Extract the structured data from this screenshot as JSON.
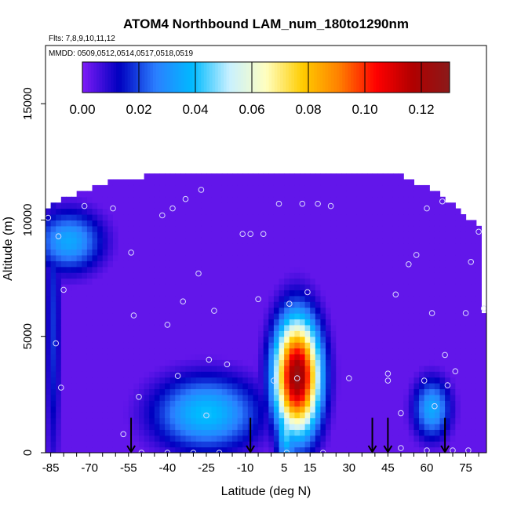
{
  "chart_data": {
    "type": "heatmap",
    "title": "ATOM4 Northbound LAM_num_180to1290nm",
    "subtitle_flights": "Flts: 7,8,9,10,11,12",
    "subtitle_dates": "MMDD: 0509,0512,0514,0517,0518,0519",
    "xlabel": "Latitude (deg N)",
    "ylabel": "Altitude (m)",
    "xlim": [
      -87,
      83
    ],
    "ylim": [
      0,
      17500
    ],
    "x_ticks": [
      -85,
      -70,
      -55,
      -40,
      -25,
      -10,
      5,
      15,
      30,
      45,
      60,
      75
    ],
    "x_tick_labels": [
      "-85",
      "-70",
      "-55",
      "-40",
      "-25",
      "-10",
      "5",
      "15",
      "30",
      "45",
      "60",
      "75"
    ],
    "y_ticks": [
      0,
      5000,
      10000,
      15000
    ],
    "y_tick_labels": [
      "0",
      "5000",
      "10000",
      "15000"
    ],
    "colorbar": {
      "range": [
        0,
        0.13
      ],
      "ticks": [
        0.0,
        0.02,
        0.04,
        0.06,
        0.08,
        0.1,
        0.12
      ],
      "tick_labels": [
        "0.00",
        "0.02",
        "0.04",
        "0.06",
        "0.08",
        "0.10",
        "0.12"
      ],
      "colors": [
        "#7f1cf7",
        "#0000c0",
        "#2b7fff",
        "#00baff",
        "#c8f0ff",
        "#ffffc0",
        "#ffcc00",
        "#ff7f00",
        "#ff0000",
        "#b00000",
        "#8b1a1a"
      ]
    },
    "background_value": 0.003,
    "coverage_envelope": [
      {
        "lat": -86,
        "alt_max": 10500
      },
      {
        "lat": -70,
        "alt_max": 11200
      },
      {
        "lat": -60,
        "alt_max": 11600
      },
      {
        "lat": -40,
        "alt_max": 11900
      },
      {
        "lat": -22,
        "alt_max": 12000
      },
      {
        "lat": 0,
        "alt_max": 12000
      },
      {
        "lat": 30,
        "alt_max": 12000
      },
      {
        "lat": 50,
        "alt_max": 11800
      },
      {
        "lat": 65,
        "alt_max": 11000
      },
      {
        "lat": 72,
        "alt_max": 10400
      },
      {
        "lat": 80,
        "alt_max": 9600
      },
      {
        "lat": 82,
        "alt_max": 6000
      }
    ],
    "features": [
      {
        "name": "southern upper layer",
        "lat": -78,
        "alt": 9100,
        "lat_width": 9,
        "alt_width": 900,
        "value": 0.035
      },
      {
        "name": "southern column",
        "lat": -84,
        "alt": 5500,
        "lat_width": 2,
        "alt_width": 4500,
        "value": 0.018
      },
      {
        "name": "southern lower blob",
        "lat": -25,
        "alt": 1700,
        "lat_width": 14,
        "alt_width": 1100,
        "value": 0.04
      },
      {
        "name": "tropical plume",
        "lat": 10,
        "alt": 3300,
        "lat_width": 6,
        "alt_width": 1700,
        "value": 0.125
      },
      {
        "name": "tropical column",
        "lat": 6,
        "alt": 1500,
        "lat_width": 3,
        "alt_width": 1500,
        "value": 0.05
      },
      {
        "name": "northern lower blob",
        "lat": 62,
        "alt": 1900,
        "lat_width": 5,
        "alt_width": 900,
        "value": 0.035
      }
    ],
    "profile_markers_lat": [
      -54,
      -8,
      39,
      45,
      67
    ],
    "sample_points": [
      {
        "lat": -86,
        "alt": 10100
      },
      {
        "lat": -82,
        "alt": 9300
      },
      {
        "lat": -80,
        "alt": 7000
      },
      {
        "lat": -83,
        "alt": 4700
      },
      {
        "lat": -81,
        "alt": 2800
      },
      {
        "lat": -72,
        "alt": 10600
      },
      {
        "lat": -61,
        "alt": 10500
      },
      {
        "lat": -54,
        "alt": 8600
      },
      {
        "lat": -53,
        "alt": 5900
      },
      {
        "lat": -42,
        "alt": 10200
      },
      {
        "lat": -38,
        "alt": 10500
      },
      {
        "lat": -33,
        "alt": 10900
      },
      {
        "lat": -27,
        "alt": 11300
      },
      {
        "lat": -28,
        "alt": 7700
      },
      {
        "lat": -34,
        "alt": 6500
      },
      {
        "lat": -40,
        "alt": 5500
      },
      {
        "lat": -22,
        "alt": 6100
      },
      {
        "lat": -24,
        "alt": 4000
      },
      {
        "lat": -17,
        "alt": 3800
      },
      {
        "lat": -36,
        "alt": 3300
      },
      {
        "lat": -51,
        "alt": 2400
      },
      {
        "lat": -57,
        "alt": 800
      },
      {
        "lat": -25,
        "alt": 1600
      },
      {
        "lat": -11,
        "alt": 9400
      },
      {
        "lat": -8,
        "alt": 9400
      },
      {
        "lat": -5,
        "alt": 6600
      },
      {
        "lat": -3,
        "alt": 9400
      },
      {
        "lat": 1,
        "alt": 3100
      },
      {
        "lat": 3,
        "alt": 10700
      },
      {
        "lat": 7,
        "alt": 6400
      },
      {
        "lat": 10,
        "alt": 3200
      },
      {
        "lat": 12,
        "alt": 10700
      },
      {
        "lat": 14,
        "alt": 6900
      },
      {
        "lat": 18,
        "alt": 10700
      },
      {
        "lat": 23,
        "alt": 10600
      },
      {
        "lat": 30,
        "alt": 3200
      },
      {
        "lat": 45,
        "alt": 3400
      },
      {
        "lat": 45,
        "alt": 3100
      },
      {
        "lat": 48,
        "alt": 6800
      },
      {
        "lat": 53,
        "alt": 8100
      },
      {
        "lat": 56,
        "alt": 8500
      },
      {
        "lat": 59,
        "alt": 3100
      },
      {
        "lat": 60,
        "alt": 10500
      },
      {
        "lat": 62,
        "alt": 6000
      },
      {
        "lat": 66,
        "alt": 10800
      },
      {
        "lat": 67,
        "alt": 4200
      },
      {
        "lat": 68,
        "alt": 2900
      },
      {
        "lat": 75,
        "alt": 6000
      },
      {
        "lat": 77,
        "alt": 8200
      },
      {
        "lat": 80,
        "alt": 9500
      },
      {
        "lat": 82,
        "alt": 6200
      },
      {
        "lat": 50,
        "alt": 1700
      },
      {
        "lat": 63,
        "alt": 2000
      },
      {
        "lat": 71,
        "alt": 3500
      },
      {
        "lat": 6,
        "alt": 0
      },
      {
        "lat": -50,
        "alt": 0
      },
      {
        "lat": -40,
        "alt": 0
      },
      {
        "lat": -30,
        "alt": 0
      },
      {
        "lat": -20,
        "alt": 0
      },
      {
        "lat": 20,
        "alt": 0
      },
      {
        "lat": 50,
        "alt": 200
      },
      {
        "lat": 60,
        "alt": 100
      },
      {
        "lat": 70,
        "alt": 100
      },
      {
        "lat": 76,
        "alt": 100
      }
    ]
  }
}
